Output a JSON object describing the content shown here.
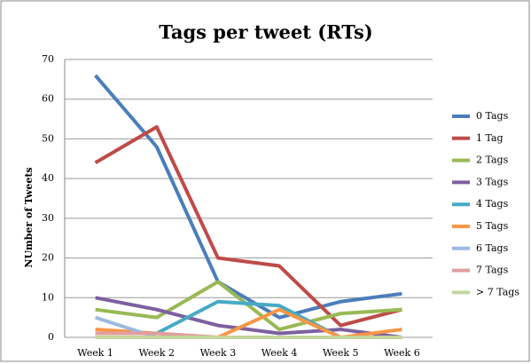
{
  "chart_data": {
    "type": "line",
    "title": "Tags per tweet (RTs)",
    "y_label": "NUmber of Tweets",
    "categories": [
      "Week 1",
      "Week 2",
      "Week 3",
      "Week 4",
      "Week 5",
      "Week 6"
    ],
    "series": [
      {
        "name": "0 Tags",
        "color": "#4a7ebb",
        "values": [
          66,
          48,
          14,
          5,
          9,
          11
        ]
      },
      {
        "name": "1 Tag",
        "color": "#be4b48",
        "values": [
          44,
          53,
          20,
          18,
          3,
          7
        ]
      },
      {
        "name": "2 Tags",
        "color": "#98b954",
        "values": [
          7,
          5,
          14,
          2,
          6,
          7
        ]
      },
      {
        "name": "3 Tags",
        "color": "#7d60a0",
        "values": [
          10,
          7,
          3,
          1,
          2,
          0
        ]
      },
      {
        "name": "4 Tags",
        "color": "#46aac5",
        "values": [
          1,
          1,
          9,
          8,
          0,
          0
        ]
      },
      {
        "name": "5 Tags",
        "color": "#f79646",
        "values": [
          2,
          1,
          0,
          7,
          0,
          2
        ]
      },
      {
        "name": "6 Tags",
        "color": "#9db9e0",
        "values": [
          5,
          0,
          0,
          0,
          0,
          0
        ]
      },
      {
        "name": "7 Tags",
        "color": "#e0a09e",
        "values": [
          1,
          1,
          0,
          0,
          0,
          0
        ]
      },
      {
        "name": "> 7 Tags",
        "color": "#c3d69b",
        "values": [
          0,
          0,
          0,
          0,
          0,
          0
        ]
      }
    ],
    "ylim": [
      0,
      70
    ],
    "yticks": [
      0,
      10,
      20,
      30,
      40,
      50,
      60,
      70
    ],
    "grid": true,
    "legend": "right"
  }
}
